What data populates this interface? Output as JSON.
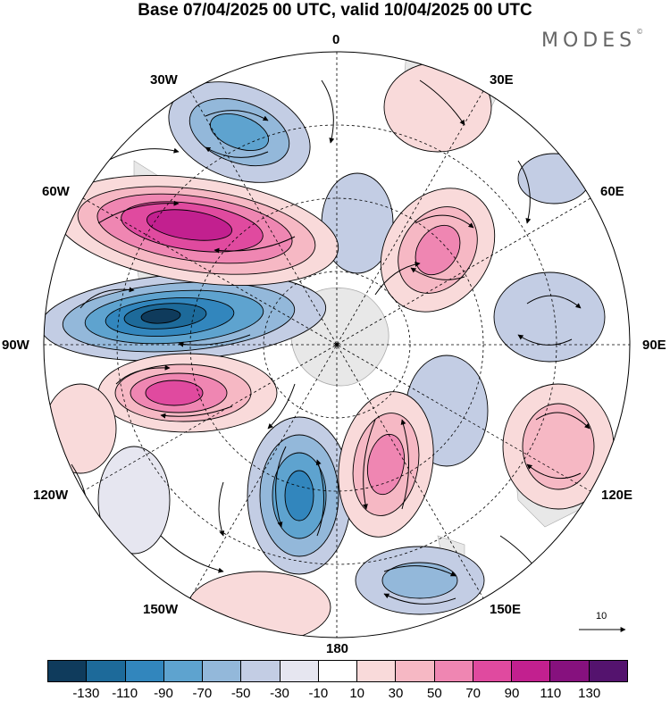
{
  "header": {
    "title": "Base 07/04/2025 00 UTC, valid 10/04/2025 00 UTC",
    "brand": "MODES",
    "brand_mark": "©"
  },
  "map": {
    "projection": "south-polar-stereographic",
    "longitude_labels": {
      "top": "0",
      "top_right": "30E",
      "right_upper": "60E",
      "right": "90E",
      "right_lower": "120E",
      "bottom_right": "150E",
      "bottom": "180",
      "bottom_left": "150W",
      "left_lower": "120W",
      "left": "90W",
      "left_upper": "60W",
      "top_left": "30W"
    },
    "reference_vector_label": "10",
    "continent_color": "#e8e8e8",
    "grid_style": "dashed"
  },
  "legend": {
    "tick_labels": [
      "-130",
      "-110",
      "-90",
      "-70",
      "-50",
      "-30",
      "-10",
      "10",
      "30",
      "50",
      "70",
      "90",
      "110",
      "130"
    ],
    "colors": [
      "#0f3b5c",
      "#1d6a9a",
      "#3286bd",
      "#5ea3cf",
      "#93b8da",
      "#c3cde4",
      "#e6e6f0",
      "#ffffff",
      "#f9dada",
      "#f6b8c4",
      "#ef86b2",
      "#e04a9f",
      "#c2208f",
      "#86117e",
      "#54136e"
    ]
  }
}
